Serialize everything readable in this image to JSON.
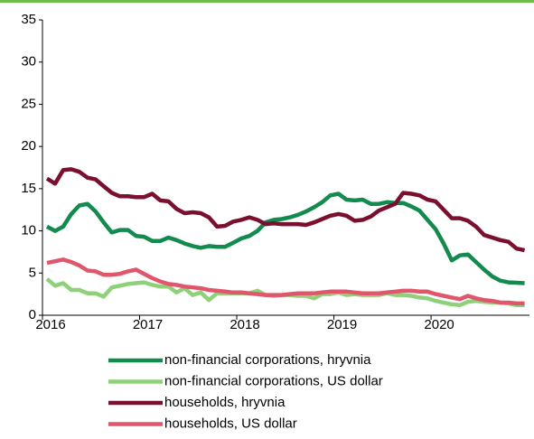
{
  "chart_data": {
    "type": "line",
    "categories": [
      "2016",
      null,
      null,
      null,
      null,
      null,
      null,
      null,
      null,
      null,
      null,
      null,
      "2017",
      null,
      null,
      null,
      null,
      null,
      null,
      null,
      null,
      null,
      null,
      null,
      "2018",
      null,
      null,
      null,
      null,
      null,
      null,
      null,
      null,
      null,
      null,
      null,
      "2019",
      null,
      null,
      null,
      null,
      null,
      null,
      null,
      null,
      null,
      null,
      null,
      "2020",
      null,
      null,
      null,
      null,
      null,
      null,
      null,
      null,
      null,
      null,
      null
    ],
    "ylim": [
      0,
      35
    ],
    "yticks": [
      0,
      5,
      10,
      15,
      20,
      25,
      30,
      35
    ],
    "grid": false,
    "series": [
      {
        "name": "non-financial corporations, hryvnia",
        "color": "#138a4e",
        "values": [
          10.5,
          10.0,
          10.5,
          12.0,
          13.0,
          13.2,
          12.3,
          11.0,
          9.8,
          10.1,
          10.1,
          9.4,
          9.3,
          8.8,
          8.8,
          9.2,
          8.9,
          8.5,
          8.2,
          8.0,
          8.2,
          8.1,
          8.1,
          8.6,
          9.1,
          9.4,
          10.0,
          11.0,
          11.3,
          11.4,
          11.6,
          11.9,
          12.3,
          12.8,
          13.4,
          14.2,
          14.4,
          13.7,
          13.6,
          13.7,
          13.2,
          13.2,
          13.4,
          13.3,
          13.3,
          12.9,
          12.4,
          11.3,
          10.2,
          8.5,
          6.5,
          7.1,
          7.2,
          6.3,
          5.4,
          4.6,
          4.1,
          3.9,
          3.85,
          3.8
        ]
      },
      {
        "name": "non-financial corporations, US dollar",
        "color": "#8fd17a",
        "values": [
          4.3,
          3.5,
          3.8,
          3.0,
          3.0,
          2.6,
          2.6,
          2.2,
          3.3,
          3.5,
          3.7,
          3.8,
          3.9,
          3.6,
          3.4,
          3.4,
          2.7,
          3.2,
          2.4,
          2.7,
          1.8,
          2.6,
          2.6,
          2.6,
          2.6,
          2.6,
          2.9,
          2.4,
          2.3,
          2.4,
          2.4,
          2.3,
          2.3,
          2.0,
          2.5,
          2.5,
          2.7,
          2.4,
          2.5,
          2.4,
          2.4,
          2.4,
          2.6,
          2.4,
          2.4,
          2.3,
          2.1,
          2.0,
          1.7,
          1.5,
          1.3,
          1.2,
          1.6,
          1.7,
          1.6,
          1.5,
          1.5,
          1.4,
          1.2,
          1.2
        ]
      },
      {
        "name": "households, hryvnia",
        "color": "#7a0f2e",
        "values": [
          16.2,
          15.6,
          17.2,
          17.3,
          17.0,
          16.3,
          16.1,
          15.3,
          14.5,
          14.1,
          14.1,
          14.0,
          14.0,
          14.4,
          13.6,
          13.5,
          12.6,
          12.1,
          12.2,
          12.1,
          11.6,
          10.5,
          10.6,
          11.1,
          11.3,
          11.6,
          11.3,
          10.8,
          10.9,
          10.8,
          10.8,
          10.8,
          10.7,
          11.0,
          11.4,
          11.8,
          12.0,
          11.8,
          11.2,
          11.3,
          11.7,
          12.4,
          12.8,
          13.2,
          14.5,
          14.4,
          14.2,
          13.7,
          13.5,
          12.5,
          11.5,
          11.5,
          11.2,
          10.5,
          9.5,
          9.2,
          8.9,
          8.7,
          7.9,
          7.7
        ]
      },
      {
        "name": "households, US dollar",
        "color": "#e0566a",
        "values": [
          6.2,
          6.4,
          6.6,
          6.3,
          5.9,
          5.3,
          5.2,
          4.8,
          4.8,
          4.9,
          5.2,
          5.4,
          4.9,
          4.4,
          4.0,
          3.7,
          3.6,
          3.4,
          3.3,
          3.2,
          3.0,
          2.9,
          2.8,
          2.7,
          2.7,
          2.6,
          2.5,
          2.4,
          2.4,
          2.4,
          2.5,
          2.6,
          2.6,
          2.6,
          2.7,
          2.8,
          2.8,
          2.8,
          2.7,
          2.6,
          2.6,
          2.6,
          2.7,
          2.8,
          2.9,
          2.9,
          2.8,
          2.8,
          2.5,
          2.3,
          2.1,
          1.9,
          2.3,
          2.0,
          1.8,
          1.7,
          1.5,
          1.5,
          1.4,
          1.4
        ]
      }
    ]
  }
}
